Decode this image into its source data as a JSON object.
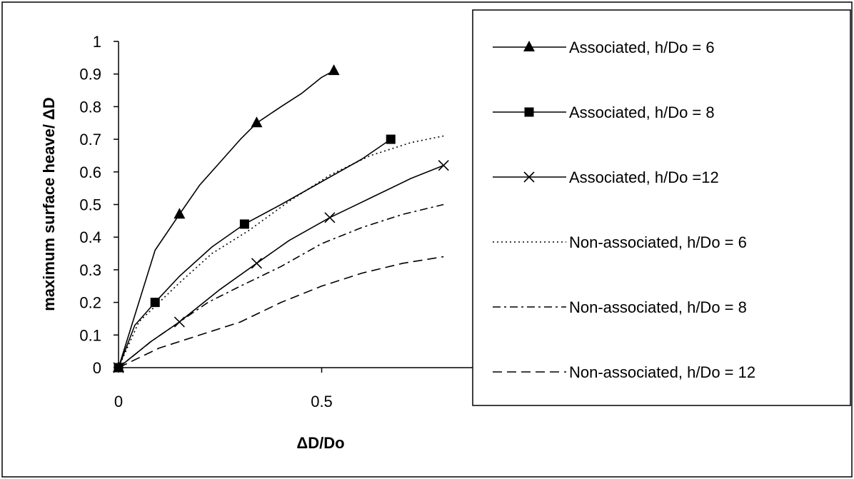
{
  "chart_data": {
    "type": "line",
    "xlabel": "ΔD/Do",
    "ylabel": "maximum surface heave/ ΔD",
    "xlim": [
      0,
      1
    ],
    "ylim": [
      0,
      1
    ],
    "x_ticks": [
      "0",
      "0.5"
    ],
    "y_ticks": [
      "0",
      "0.1",
      "0.2",
      "0.3",
      "0.4",
      "0.5",
      "0.6",
      "0.7",
      "0.8",
      "0.9",
      "1"
    ],
    "grid": false,
    "legend_position": "right",
    "series": [
      {
        "name": "Associated, h/Do = 6",
        "marker": "triangle",
        "dash": "solid",
        "curve": [
          [
            0,
            0
          ],
          [
            0.045,
            0.18
          ],
          [
            0.09,
            0.36
          ],
          [
            0.15,
            0.47
          ],
          [
            0.2,
            0.56
          ],
          [
            0.25,
            0.63
          ],
          [
            0.3,
            0.7
          ],
          [
            0.34,
            0.75
          ],
          [
            0.4,
            0.8
          ],
          [
            0.45,
            0.84
          ],
          [
            0.5,
            0.89
          ],
          [
            0.53,
            0.91
          ]
        ],
        "markers": [
          [
            0,
            0
          ],
          [
            0.15,
            0.47
          ],
          [
            0.34,
            0.75
          ],
          [
            0.53,
            0.91
          ]
        ]
      },
      {
        "name": "Associated, h/Do = 8",
        "marker": "square",
        "dash": "solid",
        "curve": [
          [
            0,
            0
          ],
          [
            0.04,
            0.13
          ],
          [
            0.09,
            0.2
          ],
          [
            0.15,
            0.28
          ],
          [
            0.23,
            0.37
          ],
          [
            0.31,
            0.44
          ],
          [
            0.4,
            0.5
          ],
          [
            0.5,
            0.57
          ],
          [
            0.6,
            0.64
          ],
          [
            0.67,
            0.7
          ]
        ],
        "markers": [
          [
            0,
            0
          ],
          [
            0.09,
            0.2
          ],
          [
            0.31,
            0.44
          ],
          [
            0.67,
            0.7
          ]
        ]
      },
      {
        "name": "Associated, h/Do =12",
        "marker": "x",
        "dash": "solid",
        "curve": [
          [
            0,
            0
          ],
          [
            0.08,
            0.08
          ],
          [
            0.15,
            0.14
          ],
          [
            0.25,
            0.24
          ],
          [
            0.34,
            0.32
          ],
          [
            0.42,
            0.39
          ],
          [
            0.52,
            0.46
          ],
          [
            0.62,
            0.52
          ],
          [
            0.72,
            0.58
          ],
          [
            0.8,
            0.62
          ]
        ],
        "markers": [
          [
            0,
            0
          ],
          [
            0.15,
            0.14
          ],
          [
            0.34,
            0.32
          ],
          [
            0.52,
            0.46
          ],
          [
            0.8,
            0.62
          ]
        ]
      },
      {
        "name": "Non-associated, h/Do = 6",
        "marker": "none",
        "dash": "dotted",
        "curve": [
          [
            0,
            0
          ],
          [
            0.05,
            0.14
          ],
          [
            0.1,
            0.2
          ],
          [
            0.15,
            0.26
          ],
          [
            0.23,
            0.35
          ],
          [
            0.32,
            0.42
          ],
          [
            0.42,
            0.51
          ],
          [
            0.52,
            0.59
          ],
          [
            0.62,
            0.65
          ],
          [
            0.72,
            0.69
          ],
          [
            0.8,
            0.71
          ]
        ],
        "markers": []
      },
      {
        "name": "Non-associated, h/Do = 8",
        "marker": "none",
        "dash": "dashdot",
        "curve": [
          [
            0,
            0
          ],
          [
            0.08,
            0.08
          ],
          [
            0.15,
            0.14
          ],
          [
            0.22,
            0.2
          ],
          [
            0.3,
            0.25
          ],
          [
            0.4,
            0.31
          ],
          [
            0.5,
            0.38
          ],
          [
            0.6,
            0.43
          ],
          [
            0.7,
            0.47
          ],
          [
            0.8,
            0.5
          ]
        ],
        "markers": []
      },
      {
        "name": "Non-associated, h/Do = 12",
        "marker": "none",
        "dash": "dashed",
        "curve": [
          [
            0,
            0
          ],
          [
            0.1,
            0.06
          ],
          [
            0.2,
            0.1
          ],
          [
            0.3,
            0.14
          ],
          [
            0.4,
            0.2
          ],
          [
            0.5,
            0.25
          ],
          [
            0.6,
            0.29
          ],
          [
            0.7,
            0.32
          ],
          [
            0.8,
            0.34
          ]
        ],
        "markers": []
      }
    ]
  }
}
